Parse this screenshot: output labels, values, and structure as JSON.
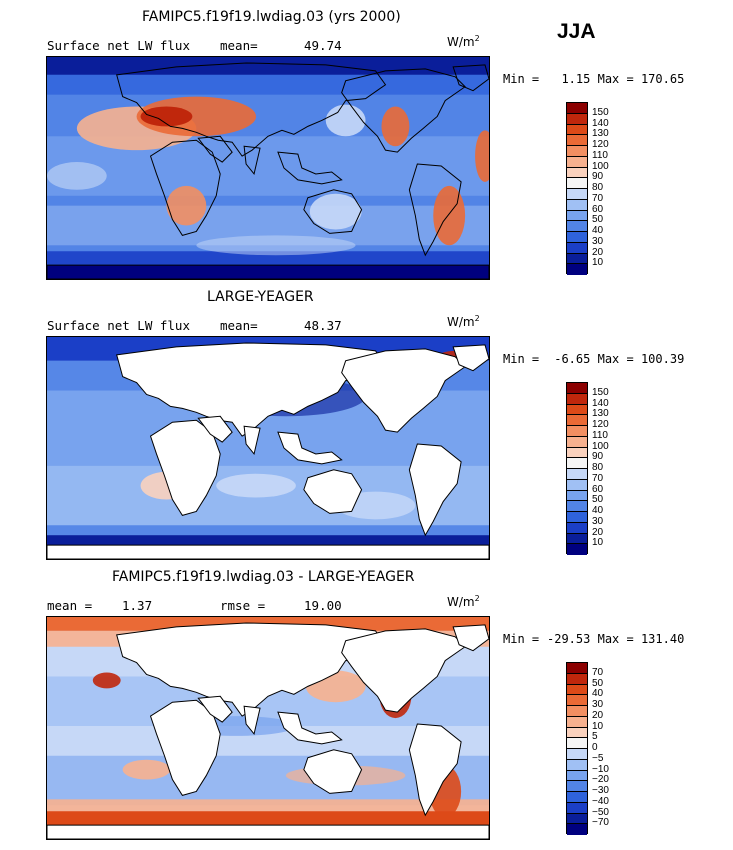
{
  "season": "JJA",
  "colors": {
    "ocean_mid": "#5b8ee8",
    "land_white": "#ffffff"
  },
  "chart_data": [
    {
      "type": "heatmap",
      "id": "model",
      "title": "FAMIPC5.f19f19.lwdiag.03 (yrs 2000)",
      "field_label": "Surface net LW flux",
      "stat_label": "mean=",
      "stat_value": "49.74",
      "units_base": "W/m",
      "units_exp": "2",
      "min_label": "Min =",
      "min_value": "1.15",
      "max_label": "Max =",
      "max_value": "170.65",
      "land_white": false,
      "colorbar": {
        "levels": [
          "150",
          "140",
          "130",
          "120",
          "110",
          "100",
          "90",
          "80",
          "70",
          "60",
          "50",
          "40",
          "30",
          "20",
          "10"
        ],
        "colors": [
          "#8b0000",
          "#c0270c",
          "#dd4a18",
          "#ea6a36",
          "#f28f62",
          "#f7b18f",
          "#fad2be",
          "#f5f5f5",
          "#c6d8f7",
          "#a0c0f4",
          "#78a3ee",
          "#5284e6",
          "#2f63dc",
          "#1b3fc7",
          "#0a1e9a",
          "#00007f"
        ]
      }
    },
    {
      "type": "heatmap",
      "id": "obs",
      "title": "LARGE-YEAGER",
      "field_label": "Surface net LW flux",
      "stat_label": "mean=",
      "stat_value": "48.37",
      "units_base": "W/m",
      "units_exp": "2",
      "min_label": "Min =",
      "min_value": "-6.65",
      "max_label": "Max =",
      "max_value": "100.39",
      "land_white": true,
      "colorbar": {
        "levels": [
          "150",
          "140",
          "130",
          "120",
          "110",
          "100",
          "90",
          "80",
          "70",
          "60",
          "50",
          "40",
          "30",
          "20",
          "10"
        ],
        "colors": [
          "#8b0000",
          "#c0270c",
          "#dd4a18",
          "#ea6a36",
          "#f28f62",
          "#f7b18f",
          "#fad2be",
          "#f5f5f5",
          "#c6d8f7",
          "#a0c0f4",
          "#78a3ee",
          "#5284e6",
          "#2f63dc",
          "#1b3fc7",
          "#0a1e9a",
          "#00007f"
        ]
      }
    },
    {
      "type": "heatmap",
      "id": "diff",
      "title": "FAMIPC5.f19f19.lwdiag.03 - LARGE-YEAGER",
      "field_label": "mean =",
      "stat_label": "1.37",
      "rmse_label": "rmse =",
      "rmse_value": "19.00",
      "units_base": "W/m",
      "units_exp": "2",
      "min_label": "Min =",
      "min_value": "-29.53",
      "max_label": "Max =",
      "max_value": "131.40",
      "land_white": true,
      "colorbar": {
        "levels": [
          "70",
          "50",
          "40",
          "30",
          "20",
          "10",
          "5",
          "0",
          "−5",
          "−10",
          "−20",
          "−30",
          "−40",
          "−50",
          "−70"
        ],
        "colors": [
          "#8b0000",
          "#c0270c",
          "#dd4a18",
          "#ea6a36",
          "#f28f62",
          "#f7b18f",
          "#fad2be",
          "#f5f5f5",
          "#c6d8f7",
          "#a0c0f4",
          "#78a3ee",
          "#5284e6",
          "#2f63dc",
          "#1b3fc7",
          "#0a1e9a",
          "#00007f"
        ]
      }
    }
  ]
}
